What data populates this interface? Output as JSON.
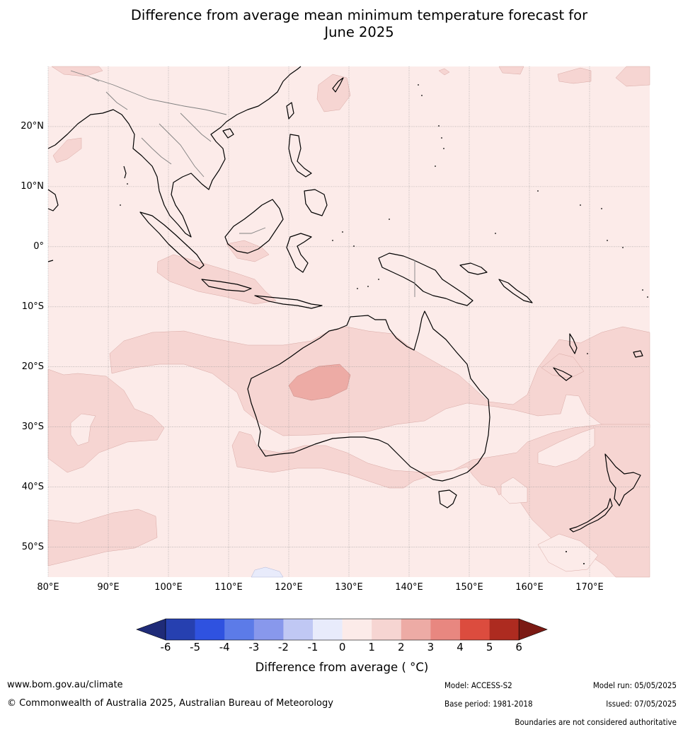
{
  "header": {
    "title_line1": "Difference from average mean minimum temperature forecast for",
    "title_line2": "June 2025"
  },
  "map": {
    "lon_range": [
      80,
      180
    ],
    "lat_range": [
      -55,
      30
    ],
    "lat_labels": [
      {
        "lat": 20,
        "label": "20°N"
      },
      {
        "lat": 10,
        "label": "10°N"
      },
      {
        "lat": 0,
        "label": "0°"
      },
      {
        "lat": -10,
        "label": "10°S"
      },
      {
        "lat": -20,
        "label": "20°S"
      },
      {
        "lat": -30,
        "label": "30°S"
      },
      {
        "lat": -40,
        "label": "40°S"
      },
      {
        "lat": -50,
        "label": "50°S"
      }
    ],
    "lon_labels": [
      {
        "lon": 80,
        "label": "80°E"
      },
      {
        "lon": 90,
        "label": "90°E"
      },
      {
        "lon": 100,
        "label": "100°E"
      },
      {
        "lon": 110,
        "label": "110°E"
      },
      {
        "lon": 120,
        "label": "120°E"
      },
      {
        "lon": 130,
        "label": "130°E"
      },
      {
        "lon": 140,
        "label": "140°E"
      },
      {
        "lon": 150,
        "label": "150°E"
      },
      {
        "lon": 160,
        "label": "160°E"
      },
      {
        "lon": 170,
        "label": "170°E"
      }
    ],
    "background_color": "#fcebe9",
    "grid_color": "#999999",
    "coast_color": "#000000",
    "border_color": "#808080"
  },
  "colorbar": {
    "title": "Difference from average ( °C)",
    "ticks": [
      "-6",
      "-5",
      "-4",
      "-3",
      "-2",
      "-1",
      "0",
      "1",
      "2",
      "3",
      "4",
      "5",
      "6"
    ],
    "low_extend_color": "#1f2b78",
    "high_extend_color": "#7b1a14",
    "colors": [
      "#2640b0",
      "#2f52e0",
      "#5c7be8",
      "#8898ec",
      "#c0c8f4",
      "#e8ebfb",
      "#fcebe9",
      "#f6d5d2",
      "#edaba5",
      "#e88780",
      "#dc4c3e",
      "#ad2b20"
    ]
  },
  "footer": {
    "website": "www.bom.gov.au/climate",
    "copyright": "© Commonwealth of Australia 2025, Australian Bureau of Meteorology",
    "model": "Model: ACCESS-S2",
    "base_period": "Base period: 1981-2018",
    "model_run": "Model run: 05/05/2025",
    "issued": "Issued: 07/05/2025",
    "disclaimer": "Boundaries are not considered authoritative"
  }
}
